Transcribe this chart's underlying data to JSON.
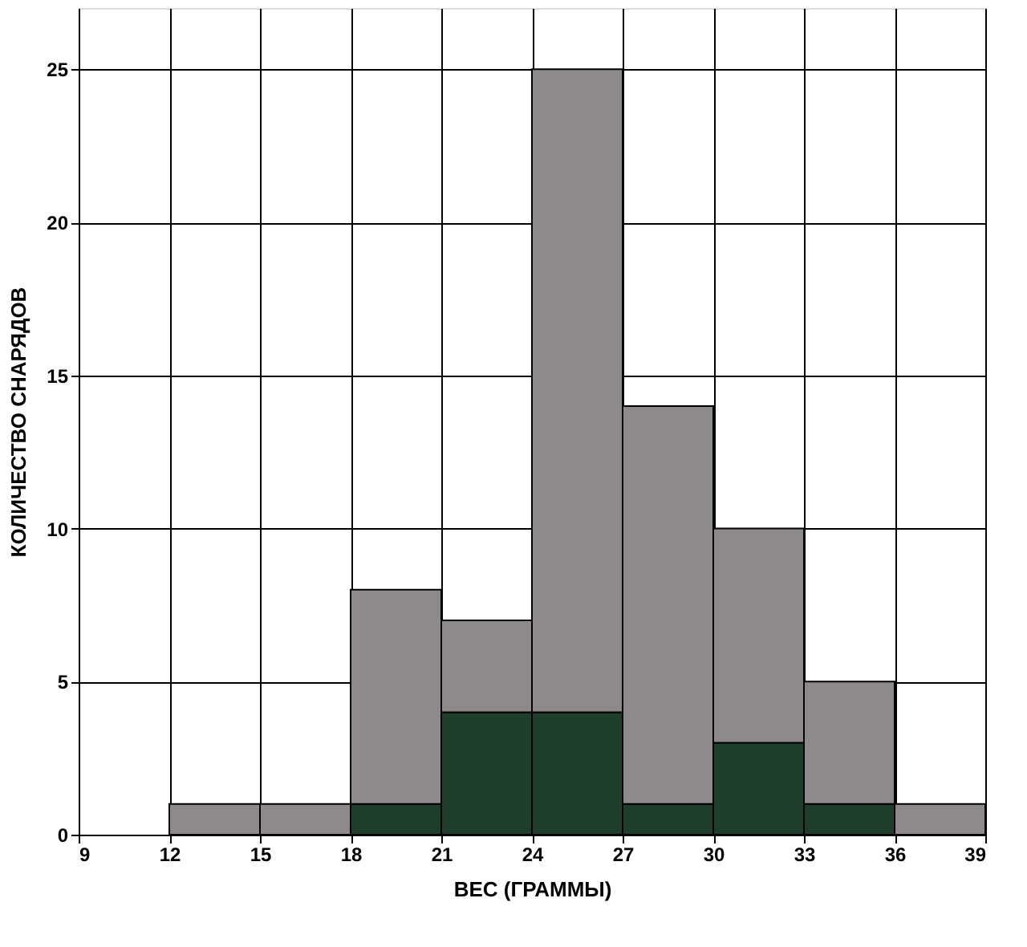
{
  "chart_data": {
    "type": "bar",
    "xlabel": "ВЕС (ГРАММЫ)",
    "ylabel": "КОЛИЧЕСТВО СНАРЯДОВ",
    "x": [
      10.5,
      13.5,
      16.5,
      19.5,
      22.5,
      25.5,
      28.5,
      31.5,
      34.5,
      37.5
    ],
    "stacked": true,
    "series": [
      {
        "color": "#1f3d2b",
        "values": [
          0,
          0,
          0,
          1,
          4,
          4,
          1,
          3,
          1,
          0
        ]
      },
      {
        "color": "#8e8a8b",
        "values": [
          0,
          1,
          1,
          7,
          3,
          21,
          13,
          7,
          4,
          1
        ]
      }
    ],
    "xlim": [
      9,
      39
    ],
    "xticks": [
      9,
      12,
      15,
      18,
      21,
      24,
      27,
      30,
      33,
      36,
      39
    ],
    "ylim": [
      0,
      27
    ],
    "yticks": [
      0,
      5,
      10,
      15,
      20,
      25
    ],
    "grid": true,
    "legend": false
  }
}
